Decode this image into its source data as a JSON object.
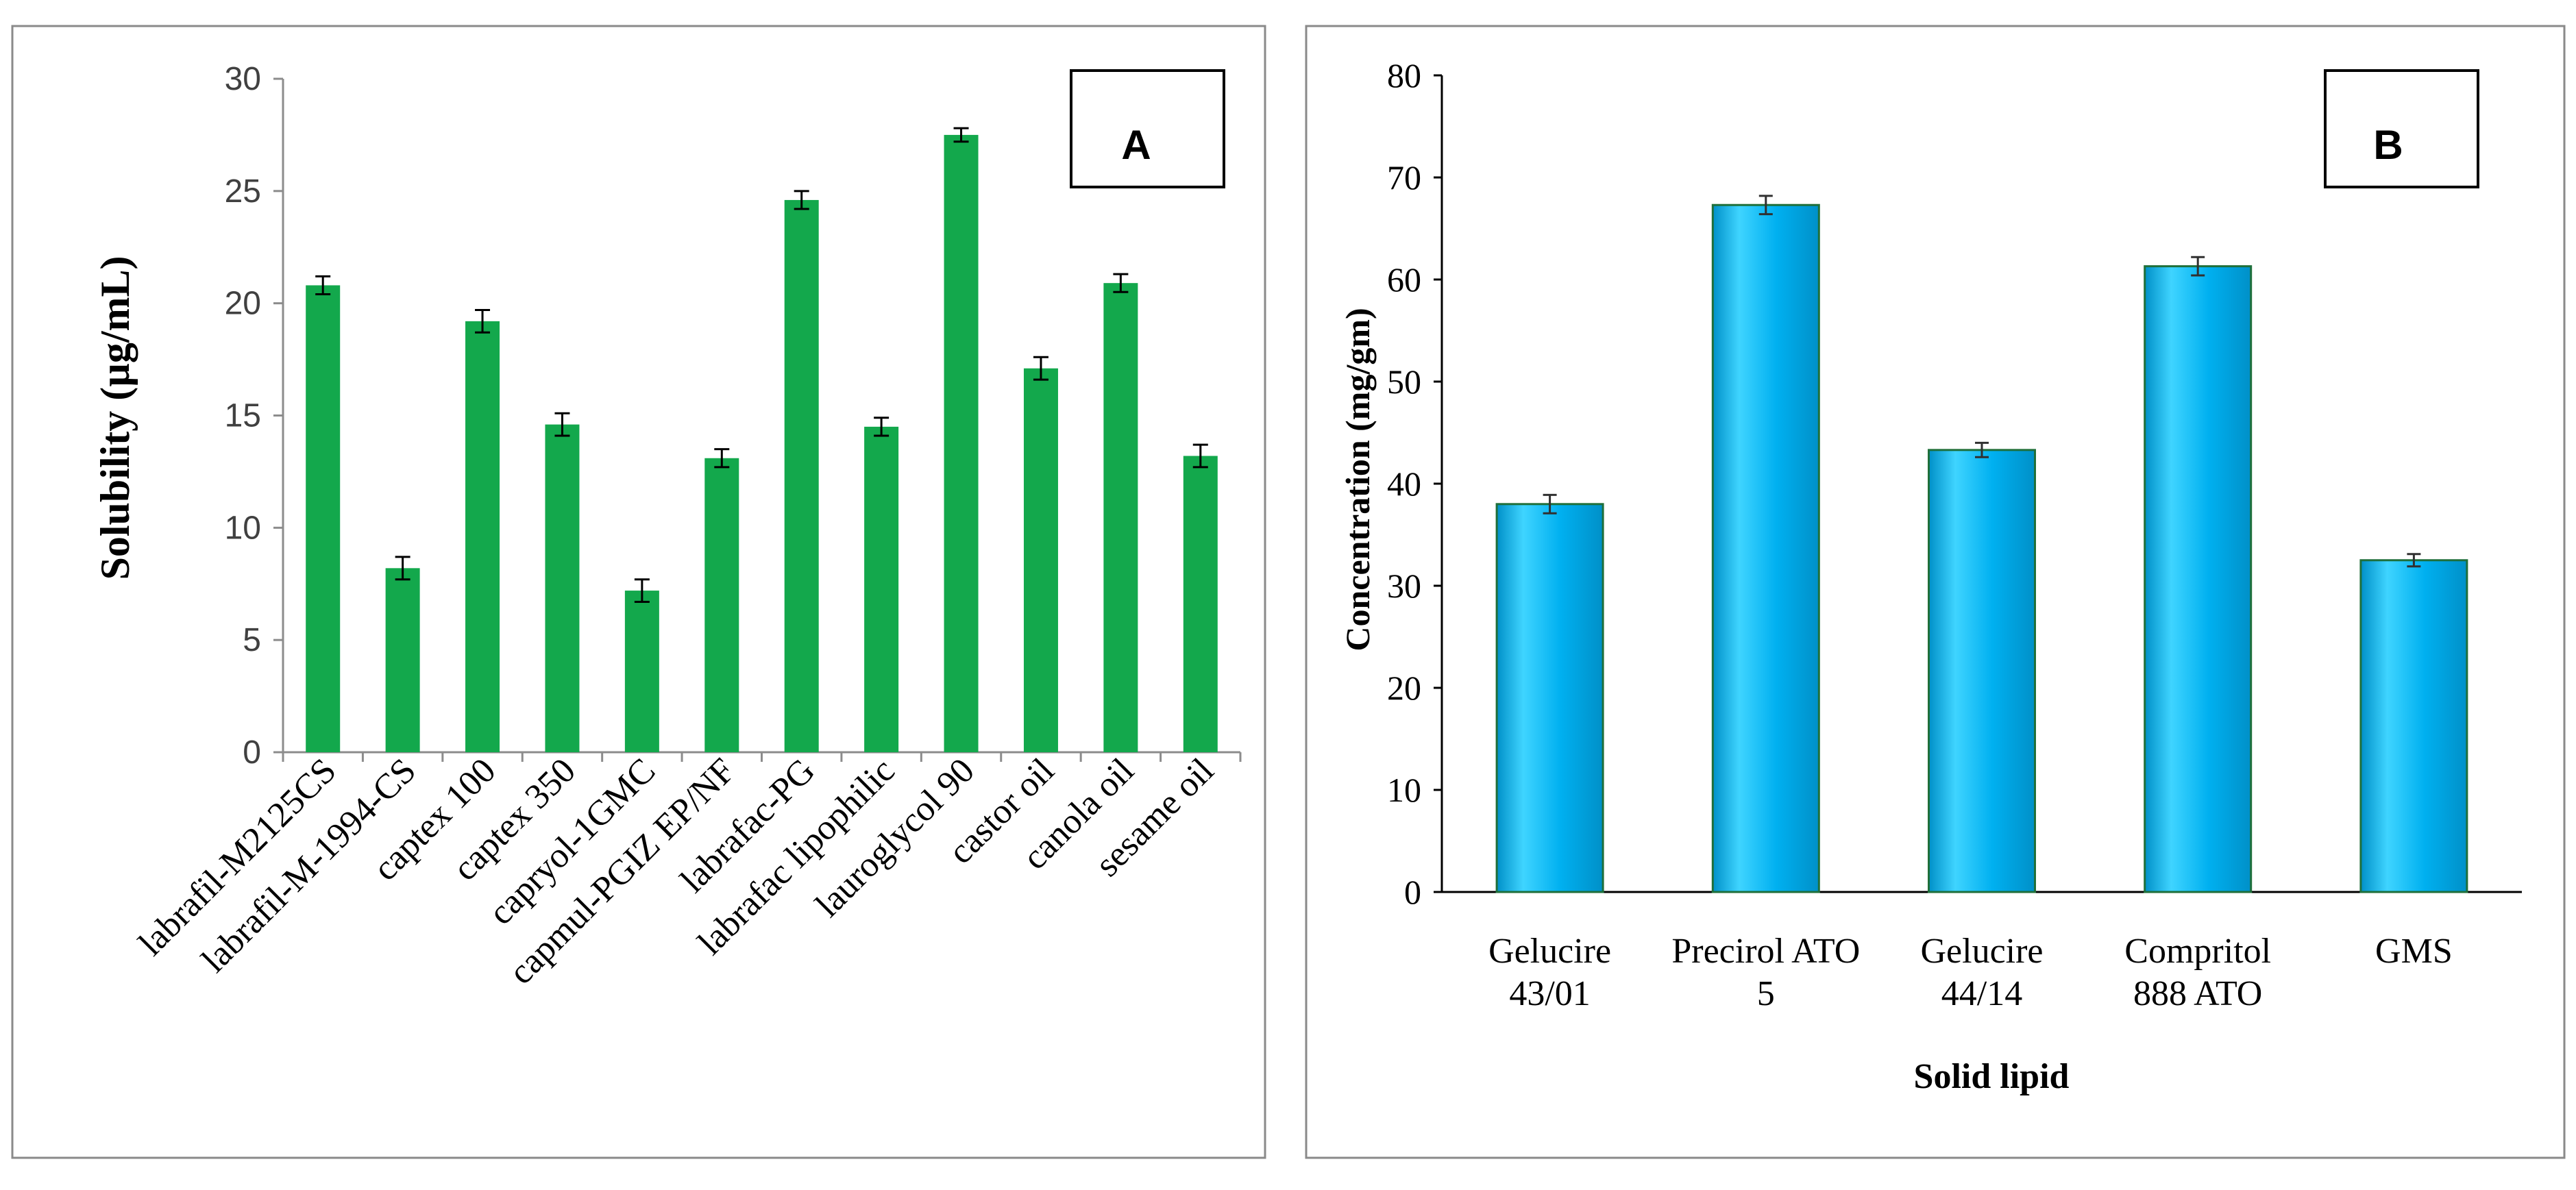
{
  "colors": {
    "bar_a": "#13a84c",
    "bar_b_light": "#3fd4ff",
    "bar_b_main": "#00b0f0",
    "bar_b_dark": "#0090c8"
  },
  "chart_data": [
    {
      "type": "bar",
      "panel_label": "A",
      "title": "",
      "xlabel": "",
      "ylabel": "Solubility (µg/mL)",
      "ylim": [
        0,
        30
      ],
      "yticks": [
        "0",
        "5",
        "10",
        "15",
        "20",
        "25",
        "30"
      ],
      "categories": [
        "labrafil-M2125CS",
        "labrafil-M-1994-CS",
        "captex 100",
        "captex 350",
        "capryol-1GMC",
        "capmul-PGIZ EP/NF",
        "labrafac-PG",
        "labrafac lipophilic",
        "lauroglycol 90",
        "castor oil",
        "canola oil",
        "sesame oil"
      ],
      "values": [
        20.8,
        8.2,
        19.2,
        14.6,
        7.2,
        13.1,
        24.6,
        14.5,
        27.5,
        17.1,
        20.9,
        13.2
      ],
      "errors": [
        0.4,
        0.5,
        0.5,
        0.5,
        0.5,
        0.4,
        0.4,
        0.4,
        0.3,
        0.5,
        0.4,
        0.5
      ]
    },
    {
      "type": "bar",
      "panel_label": "B",
      "title": "",
      "xlabel": "Solid lipid",
      "ylabel": "Concentration (mg/gm)",
      "ylim": [
        0,
        80
      ],
      "yticks": [
        "0",
        "10",
        "20",
        "30",
        "40",
        "50",
        "60",
        "70",
        "80"
      ],
      "categories": [
        [
          "Gelucire",
          "43/01"
        ],
        [
          "Precirol ATO",
          "5"
        ],
        [
          "Gelucire",
          "44/14"
        ],
        [
          "Compritol",
          "888 ATO"
        ],
        [
          "GMS"
        ]
      ],
      "values": [
        38.0,
        67.3,
        43.3,
        61.3,
        32.5
      ],
      "errors": [
        0.9,
        0.9,
        0.7,
        0.9,
        0.6
      ]
    }
  ]
}
